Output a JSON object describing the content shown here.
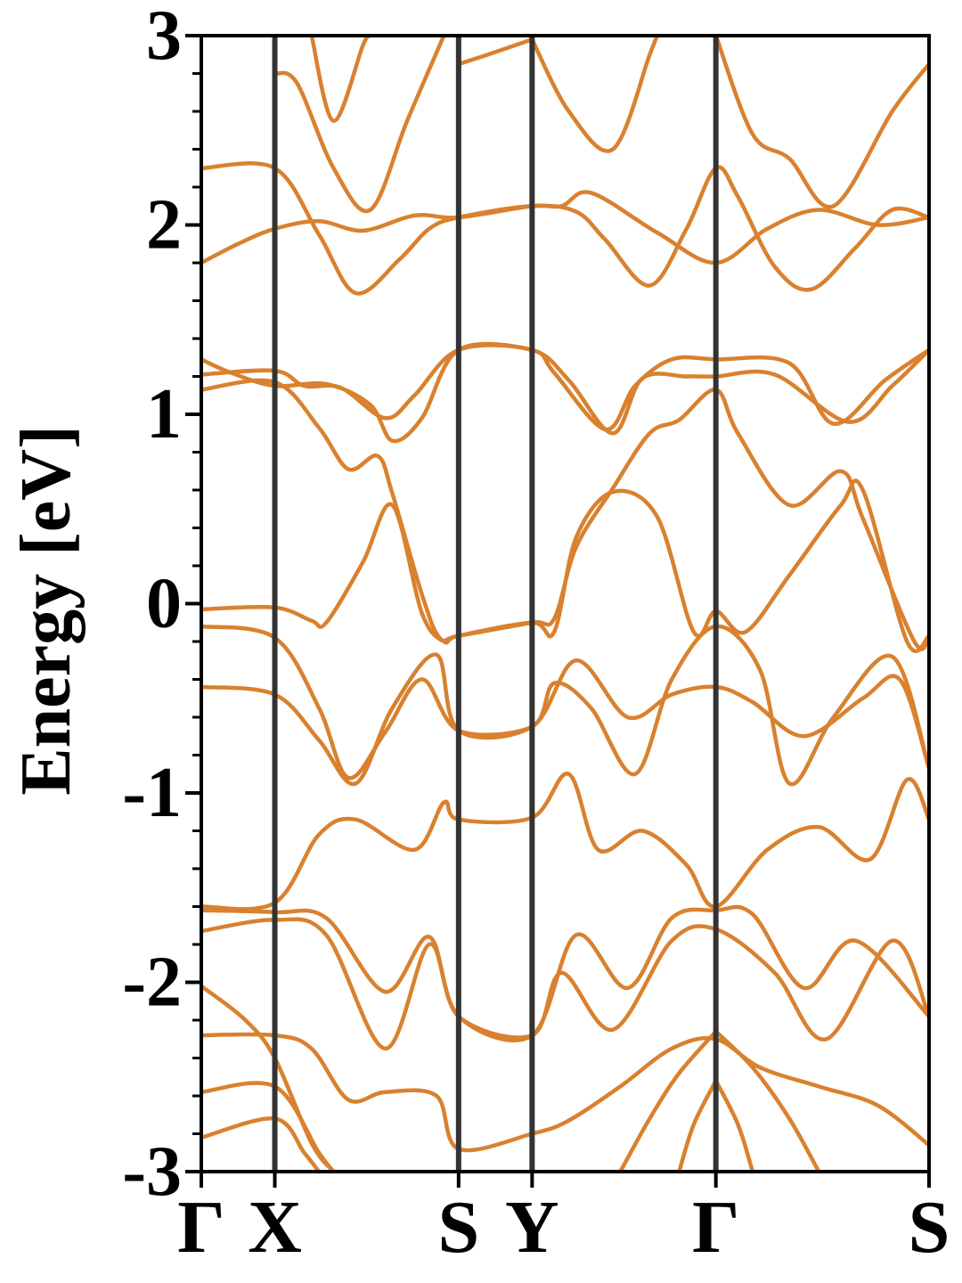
{
  "chart_data": {
    "type": "line",
    "ylabel": "Energy [eV]",
    "xlabel": "",
    "ylim": [
      -3,
      3
    ],
    "yticks": [
      "3",
      "2",
      "1",
      "0",
      "-1",
      "-2",
      "-3"
    ],
    "grid": false,
    "legend": "none",
    "band_color": "#d9812f",
    "kpath_line_color": "#333333",
    "kpoints": [
      {
        "label": "Γ",
        "x": 0
      },
      {
        "label": "X",
        "x": 0.5
      },
      {
        "label": "S",
        "x": 1.75
      },
      {
        "label": "Y",
        "x": 2.25
      },
      {
        "label": "Γ",
        "x": 3.5
      },
      {
        "label": "S",
        "x": 4.95
      }
    ],
    "series": [
      {
        "values": [
          [
            0,
            1.8
          ],
          [
            0.25,
            1.9
          ],
          [
            0.5,
            1.98
          ],
          [
            0.8,
            2.02
          ],
          [
            1.1,
            1.97
          ],
          [
            1.45,
            2.05
          ],
          [
            1.75,
            2.04
          ],
          [
            2.25,
            2.1
          ],
          [
            2.45,
            2.1
          ],
          [
            2.65,
            2.17
          ],
          [
            3.1,
            1.96
          ],
          [
            3.5,
            1.8
          ],
          [
            3.85,
            1.98
          ],
          [
            4.2,
            2.08
          ],
          [
            4.6,
            2.0
          ],
          [
            4.95,
            2.04
          ]
        ]
      },
      {
        "values": [
          [
            0,
            2.3
          ],
          [
            0.5,
            2.3
          ],
          [
            0.8,
            1.95
          ],
          [
            1.05,
            1.64
          ],
          [
            1.35,
            1.82
          ],
          [
            1.55,
            1.98
          ],
          [
            1.75,
            2.04
          ],
          [
            2.25,
            2.1
          ],
          [
            2.55,
            2.07
          ],
          [
            2.75,
            1.92
          ],
          [
            3.05,
            1.68
          ],
          [
            3.3,
            1.98
          ],
          [
            3.5,
            2.3
          ],
          [
            3.65,
            2.15
          ],
          [
            3.9,
            1.78
          ],
          [
            4.15,
            1.66
          ],
          [
            4.45,
            1.88
          ],
          [
            4.7,
            2.08
          ],
          [
            4.95,
            2.04
          ]
        ]
      },
      {
        "values": [
          [
            0,
            1.29
          ],
          [
            0.2,
            1.22
          ],
          [
            0.5,
            1.15
          ],
          [
            0.85,
            1.16
          ],
          [
            1.15,
            1.05
          ],
          [
            1.3,
            0.86
          ],
          [
            1.5,
            0.98
          ],
          [
            1.75,
            1.34
          ],
          [
            2.25,
            1.34
          ],
          [
            2.4,
            1.22
          ],
          [
            2.75,
            0.92
          ],
          [
            2.95,
            1.15
          ],
          [
            3.2,
            1.29
          ],
          [
            3.5,
            1.29
          ],
          [
            4.0,
            1.27
          ],
          [
            4.3,
            0.95
          ],
          [
            4.65,
            1.18
          ],
          [
            4.95,
            1.34
          ]
        ]
      },
      {
        "values": [
          [
            0,
            1.21
          ],
          [
            0.5,
            1.23
          ],
          [
            0.7,
            1.15
          ],
          [
            0.95,
            1.14
          ],
          [
            1.25,
            0.98
          ],
          [
            1.45,
            1.1
          ],
          [
            1.75,
            1.34
          ],
          [
            2.25,
            1.34
          ],
          [
            2.5,
            1.18
          ],
          [
            2.8,
            0.9
          ],
          [
            3.0,
            1.19
          ],
          [
            3.3,
            1.2
          ],
          [
            3.5,
            1.2
          ],
          [
            3.9,
            1.21
          ],
          [
            4.4,
            0.96
          ],
          [
            4.7,
            1.15
          ],
          [
            4.95,
            1.34
          ]
        ]
      },
      {
        "values": [
          [
            0,
            1.13
          ],
          [
            0.5,
            1.17
          ],
          [
            0.8,
            0.93
          ],
          [
            1.0,
            0.71
          ],
          [
            1.2,
            0.78
          ],
          [
            1.3,
            0.58
          ],
          [
            1.5,
            0.05
          ],
          [
            1.62,
            -0.18
          ],
          [
            1.75,
            -0.17
          ],
          [
            2.25,
            -0.1
          ],
          [
            2.4,
            -0.08
          ],
          [
            2.55,
            0.3
          ],
          [
            2.8,
            0.61
          ],
          [
            3.05,
            0.9
          ],
          [
            3.25,
            0.97
          ],
          [
            3.5,
            1.13
          ],
          [
            3.65,
            0.9
          ],
          [
            4.0,
            0.52
          ],
          [
            4.35,
            0.7
          ],
          [
            4.5,
            0.45
          ],
          [
            4.85,
            -0.2
          ],
          [
            4.95,
            -0.17
          ]
        ]
      },
      {
        "values": [
          [
            0,
            -0.03
          ],
          [
            0.5,
            -0.02
          ],
          [
            0.75,
            -0.09
          ],
          [
            0.85,
            -0.1
          ],
          [
            1.1,
            0.22
          ],
          [
            1.3,
            0.52
          ],
          [
            1.5,
            -0.05
          ],
          [
            1.65,
            -0.2
          ],
          [
            1.75,
            -0.17
          ],
          [
            2.25,
            -0.1
          ],
          [
            2.4,
            -0.15
          ],
          [
            2.55,
            0.35
          ],
          [
            2.8,
            0.59
          ],
          [
            3.1,
            0.46
          ],
          [
            3.35,
            -0.15
          ],
          [
            3.5,
            -0.04
          ],
          [
            3.7,
            -0.15
          ],
          [
            4.0,
            0.15
          ],
          [
            4.35,
            0.52
          ],
          [
            4.5,
            0.6
          ],
          [
            4.8,
            -0.2
          ],
          [
            4.95,
            -0.17
          ]
        ]
      },
      {
        "values": [
          [
            0,
            -0.12
          ],
          [
            0.5,
            -0.18
          ],
          [
            0.8,
            -0.55
          ],
          [
            1.0,
            -0.92
          ],
          [
            1.25,
            -0.68
          ],
          [
            1.5,
            -0.4
          ],
          [
            1.75,
            -0.67
          ],
          [
            2.25,
            -0.65
          ],
          [
            2.4,
            -0.42
          ],
          [
            2.65,
            -0.55
          ],
          [
            2.95,
            -0.9
          ],
          [
            3.2,
            -0.4
          ],
          [
            3.5,
            -0.12
          ],
          [
            3.8,
            -0.35
          ],
          [
            4.0,
            -0.95
          ],
          [
            4.3,
            -0.6
          ],
          [
            4.7,
            -0.28
          ],
          [
            4.95,
            -0.87
          ]
        ]
      },
      {
        "values": [
          [
            0,
            -0.44
          ],
          [
            0.5,
            -0.48
          ],
          [
            0.8,
            -0.72
          ],
          [
            1.05,
            -0.95
          ],
          [
            1.3,
            -0.55
          ],
          [
            1.6,
            -0.27
          ],
          [
            1.75,
            -0.67
          ],
          [
            2.25,
            -0.65
          ],
          [
            2.55,
            -0.3
          ],
          [
            2.9,
            -0.6
          ],
          [
            3.2,
            -0.48
          ],
          [
            3.5,
            -0.44
          ],
          [
            3.75,
            -0.52
          ],
          [
            4.1,
            -0.7
          ],
          [
            4.5,
            -0.5
          ],
          [
            4.75,
            -0.4
          ],
          [
            4.95,
            -0.87
          ]
        ]
      },
      {
        "values": [
          [
            0,
            -1.6
          ],
          [
            0.5,
            -1.58
          ],
          [
            0.8,
            -1.22
          ],
          [
            1.05,
            -1.14
          ],
          [
            1.45,
            -1.3
          ],
          [
            1.65,
            -1.05
          ],
          [
            1.75,
            -1.14
          ],
          [
            2.25,
            -1.13
          ],
          [
            2.5,
            -0.9
          ],
          [
            2.7,
            -1.3
          ],
          [
            3.0,
            -1.2
          ],
          [
            3.3,
            -1.38
          ],
          [
            3.5,
            -1.6
          ],
          [
            3.85,
            -1.3
          ],
          [
            4.2,
            -1.18
          ],
          [
            4.55,
            -1.35
          ],
          [
            4.8,
            -0.93
          ],
          [
            4.95,
            -1.14
          ]
        ]
      },
      {
        "values": [
          [
            0,
            -1.62
          ],
          [
            0.5,
            -1.63
          ],
          [
            0.85,
            -1.66
          ],
          [
            1.25,
            -2.05
          ],
          [
            1.55,
            -1.76
          ],
          [
            1.75,
            -2.18
          ],
          [
            2.25,
            -2.28
          ],
          [
            2.55,
            -1.75
          ],
          [
            2.9,
            -2.03
          ],
          [
            3.2,
            -1.66
          ],
          [
            3.5,
            -1.62
          ],
          [
            3.75,
            -1.64
          ],
          [
            4.1,
            -2.03
          ],
          [
            4.45,
            -1.78
          ],
          [
            4.95,
            -2.18
          ]
        ]
      },
      {
        "values": [
          [
            0,
            -1.73
          ],
          [
            0.5,
            -1.67
          ],
          [
            0.85,
            -1.75
          ],
          [
            1.25,
            -2.35
          ],
          [
            1.55,
            -1.8
          ],
          [
            1.75,
            -2.18
          ],
          [
            2.25,
            -2.28
          ],
          [
            2.45,
            -1.95
          ],
          [
            2.8,
            -2.25
          ],
          [
            3.2,
            -1.78
          ],
          [
            3.5,
            -1.72
          ],
          [
            3.9,
            -1.95
          ],
          [
            4.25,
            -2.3
          ],
          [
            4.7,
            -1.78
          ],
          [
            4.95,
            -2.18
          ]
        ]
      },
      {
        "values": [
          [
            0,
            -2.28
          ],
          [
            0.5,
            -2.28
          ],
          [
            0.75,
            -2.35
          ],
          [
            1.0,
            -2.62
          ],
          [
            1.25,
            -2.58
          ],
          [
            1.6,
            -2.6
          ],
          [
            1.75,
            -2.88
          ],
          [
            2.25,
            -2.8
          ],
          [
            2.5,
            -2.73
          ],
          [
            2.85,
            -2.55
          ],
          [
            3.2,
            -2.35
          ],
          [
            3.5,
            -2.3
          ],
          [
            3.8,
            -2.45
          ],
          [
            4.2,
            -2.55
          ],
          [
            4.6,
            -2.65
          ],
          [
            4.95,
            -2.86
          ]
        ]
      },
      {
        "values": [
          [
            0,
            -2.02
          ],
          [
            0.3,
            -2.2
          ],
          [
            0.5,
            -2.4
          ],
          [
            0.75,
            -2.85
          ],
          [
            0.9,
            -3.0
          ]
        ]
      },
      {
        "values": [
          [
            0,
            -2.58
          ],
          [
            0.5,
            -2.55
          ],
          [
            0.8,
            -2.9
          ],
          [
            0.9,
            -3.0
          ]
        ]
      },
      {
        "values": [
          [
            0,
            -2.82
          ],
          [
            0.5,
            -2.72
          ],
          [
            0.7,
            -2.9
          ],
          [
            0.8,
            -3.0
          ]
        ]
      },
      {
        "values": [
          [
            3.5,
            -2.26
          ],
          [
            3.25,
            -2.48
          ],
          [
            3.05,
            -2.72
          ],
          [
            2.85,
            -3.0
          ]
        ]
      },
      {
        "values": [
          [
            3.5,
            -2.26
          ],
          [
            3.75,
            -2.45
          ],
          [
            4.0,
            -2.72
          ],
          [
            4.2,
            -3.0
          ]
        ]
      },
      {
        "values": [
          [
            3.5,
            -2.52
          ],
          [
            3.35,
            -2.75
          ],
          [
            3.25,
            -3.0
          ]
        ]
      },
      {
        "values": [
          [
            3.5,
            -2.52
          ],
          [
            3.65,
            -2.75
          ],
          [
            3.75,
            -3.0
          ]
        ]
      },
      {
        "values": [
          [
            0.5,
            2.8
          ],
          [
            0.65,
            2.75
          ],
          [
            0.9,
            2.3
          ],
          [
            1.15,
            2.08
          ],
          [
            1.4,
            2.55
          ],
          [
            1.65,
            3.0
          ]
        ]
      },
      {
        "values": [
          [
            0.75,
            3.0
          ],
          [
            0.9,
            2.55
          ],
          [
            1.1,
            2.95
          ],
          [
            1.15,
            3.0
          ]
        ]
      },
      {
        "values": [
          [
            1.75,
            2.85
          ],
          [
            1.95,
            2.9
          ],
          [
            2.25,
            2.98
          ]
        ]
      },
      {
        "values": [
          [
            2.25,
            2.98
          ],
          [
            2.5,
            2.6
          ],
          [
            2.8,
            2.4
          ],
          [
            3.05,
            2.9
          ],
          [
            3.1,
            3.0
          ]
        ]
      },
      {
        "values": [
          [
            3.5,
            3.0
          ],
          [
            3.75,
            2.48
          ],
          [
            4.0,
            2.35
          ],
          [
            4.3,
            2.1
          ],
          [
            4.7,
            2.6
          ],
          [
            4.95,
            2.85
          ]
        ]
      }
    ]
  }
}
